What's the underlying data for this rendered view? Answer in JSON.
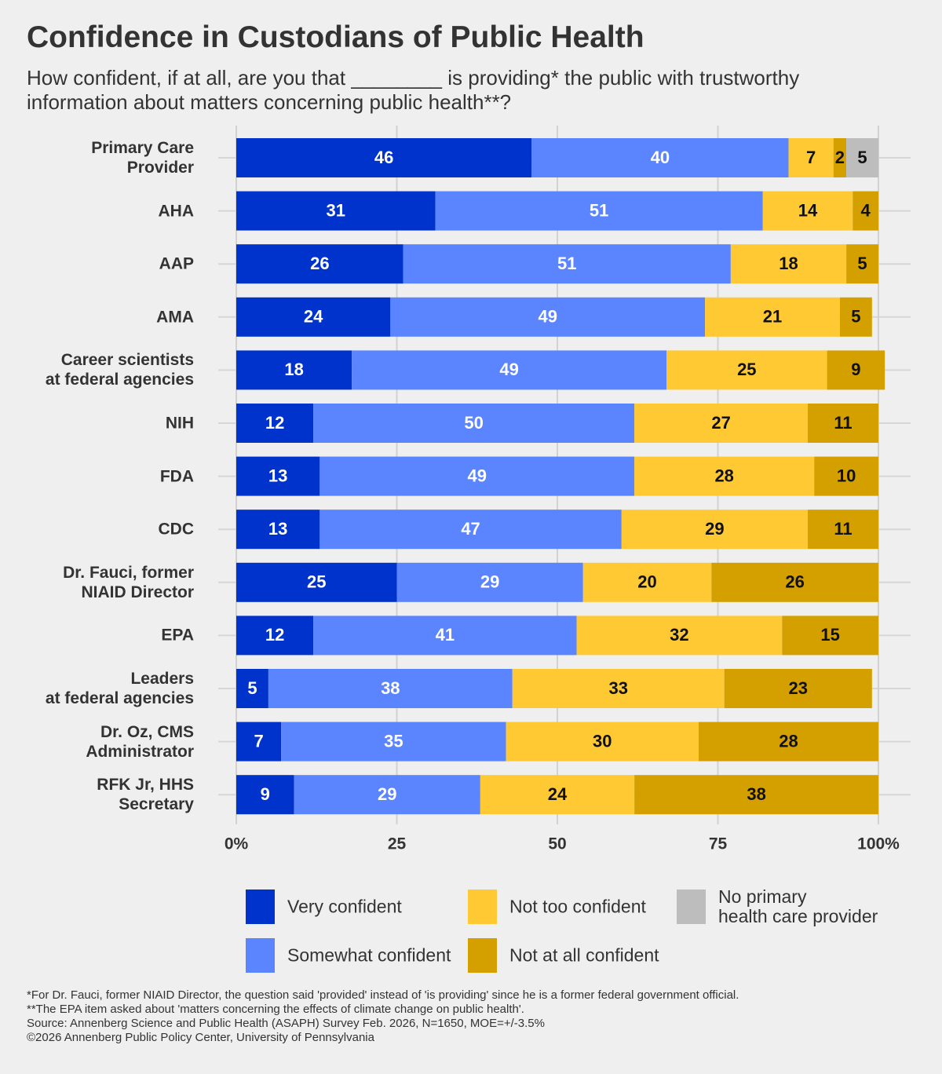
{
  "chart_data": {
    "type": "stacked-bar-horizontal",
    "title": "Confidence in Custodians of Public Health",
    "subtitle": "How confident, if at all, are you that ________ is providing* the public with trustworthy\ninformation about matters concerning public health**?",
    "categories": [
      "Primary Care\nProvider",
      "AHA",
      "AAP",
      "AMA",
      "Career scientists\nat federal agencies",
      "NIH",
      "FDA",
      "CDC",
      "Dr. Fauci, former\nNIAID Director",
      "EPA",
      "Leaders\nat federal agencies",
      "Dr. Oz, CMS\nAdministrator",
      "RFK Jr, HHS\nSecretary"
    ],
    "series": [
      {
        "name": "Very confident",
        "color": "#0033cc",
        "values": [
          46,
          31,
          26,
          24,
          18,
          12,
          13,
          13,
          25,
          12,
          5,
          7,
          9
        ]
      },
      {
        "name": "Somewhat confident",
        "color": "#5b84ff",
        "values": [
          40,
          51,
          51,
          49,
          49,
          50,
          49,
          47,
          29,
          41,
          38,
          35,
          29
        ]
      },
      {
        "name": "Not too confident",
        "color": "#ffc933",
        "values": [
          7,
          14,
          18,
          21,
          25,
          27,
          28,
          29,
          20,
          32,
          33,
          30,
          24
        ]
      },
      {
        "name": "Not at all confident",
        "color": "#d4a000",
        "values": [
          2,
          4,
          5,
          5,
          9,
          11,
          10,
          11,
          26,
          15,
          23,
          28,
          38
        ]
      },
      {
        "name": "No primary\nhealth care provider",
        "color": "#bdbdbd",
        "values": [
          5,
          null,
          null,
          null,
          null,
          null,
          null,
          null,
          null,
          null,
          null,
          null,
          null
        ]
      }
    ],
    "xlim": [
      0,
      100
    ],
    "xticks": [
      {
        "value": 0,
        "label": "0%"
      },
      25,
      50,
      75,
      {
        "value": 100,
        "label": "100%"
      }
    ],
    "grid": true,
    "notes": [
      "*For Dr. Fauci, former NIAID Director, the question said 'provided' instead of 'is providing' since he is a former federal government official.",
      "**The EPA item asked about 'matters concerning the effects of climate change on public health'.",
      "Source: Annenberg Science and Public Health (ASAPH) Survey Feb. 2026, N=1650, MOE=+/-3.5%",
      "©2026 Annenberg Public Policy Center, University of Pennsylvania"
    ]
  }
}
